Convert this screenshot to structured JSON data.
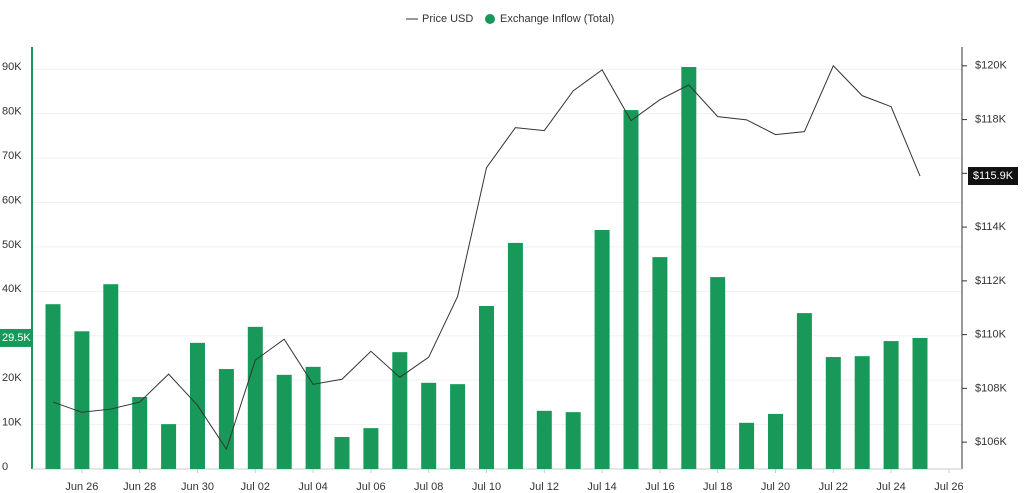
{
  "chart_data": {
    "type": "bar",
    "categories": [
      null,
      "Jun 26",
      null,
      "Jun 28",
      null,
      "Jun 30",
      null,
      "Jul 02",
      null,
      "Jul 04",
      null,
      "Jul 06",
      null,
      "Jul 08",
      null,
      "Jul 10",
      null,
      "Jul 12",
      null,
      "Jul 14",
      null,
      "Jul 16",
      null,
      "Jul 18",
      null,
      "Jul 20",
      null,
      "Jul 22",
      null,
      "Jul 24",
      null,
      "Jul 26"
    ],
    "series": [
      {
        "name": "Price USD",
        "type": "line",
        "axis": "y2",
        "color": "#333333",
        "values": [
          107490,
          107110,
          107230,
          107490,
          108530,
          107370,
          105740,
          109050,
          109830,
          108150,
          108340,
          109380,
          108410,
          109160,
          111420,
          116210,
          117700,
          117590,
          119070,
          119850,
          117960,
          118740,
          119290,
          118110,
          117990,
          117440,
          117550,
          120000,
          118890,
          118480,
          115900,
          null
        ]
      },
      {
        "name": "Exchange Inflow (Total)",
        "type": "bar",
        "axis": "y",
        "color": "#18995a",
        "values": [
          37100,
          31000,
          41600,
          16200,
          10100,
          28400,
          22500,
          32000,
          21200,
          23000,
          7200,
          9200,
          26300,
          19400,
          19100,
          36700,
          50900,
          13100,
          12800,
          53800,
          80800,
          47700,
          90500,
          43200,
          10400,
          12400,
          35100,
          25200,
          25400,
          28800,
          29500,
          null
        ]
      }
    ],
    "ylim": [
      0,
      95000
    ],
    "yticks": [
      0,
      {
        "value": 10000,
        "label": "10K"
      },
      {
        "value": 20000,
        "label": "20K"
      },
      {
        "value": 30000,
        "label": "30K"
      },
      {
        "value": 40000,
        "label": "40K"
      },
      {
        "value": 50000,
        "label": "50K"
      },
      {
        "value": 60000,
        "label": "60K"
      },
      {
        "value": 70000,
        "label": "70K"
      },
      {
        "value": 80000,
        "label": "80K"
      },
      {
        "value": 90000,
        "label": "90K"
      }
    ],
    "y2lim": [
      105000,
      120700
    ],
    "y2ticks": [
      {
        "value": 106000,
        "label": "$106K"
      },
      {
        "value": 108000,
        "label": "$108K"
      },
      {
        "value": 110000,
        "label": "$110K"
      },
      {
        "value": 112000,
        "label": "$112K"
      },
      {
        "value": 114000,
        "label": "$114K"
      },
      {
        "value": 116000,
        "label": "$116K"
      },
      {
        "value": 118000,
        "label": "$118K"
      },
      {
        "value": 120000,
        "label": "$120K"
      }
    ],
    "annotations": [
      {
        "axis": "y",
        "value": 29500,
        "label": "29.5K"
      },
      {
        "axis": "y2",
        "value": 115900,
        "label": "$115.9K"
      }
    ],
    "grid": true,
    "legend": "top"
  }
}
